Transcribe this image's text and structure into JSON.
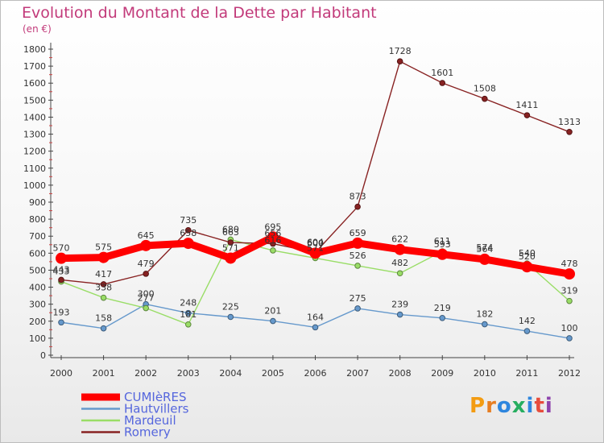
{
  "header": {
    "title": "Evolution du Montant de la Dette par Habitant",
    "subtitle": "(en €)"
  },
  "logo": {
    "text": "Proxiti"
  },
  "colors": {
    "title": "#c23a7a",
    "cumieres": "#ff0000",
    "hautvillers": "#6699cc",
    "mardeuil": "#99dd66",
    "romery": "#882222"
  },
  "chart_data": {
    "type": "line",
    "title": "Evolution du Montant de la Dette par Habitant",
    "subtitle": "(en €)",
    "xlabel": "",
    "ylabel": "",
    "x": [
      "2000",
      "2001",
      "2002",
      "2003",
      "2004",
      "2005",
      "2006",
      "2007",
      "2008",
      "2009",
      "2010",
      "2011",
      "2012"
    ],
    "ylim": [
      0,
      1800
    ],
    "yticks": [
      0,
      100,
      200,
      300,
      400,
      500,
      600,
      700,
      800,
      900,
      1000,
      1100,
      1200,
      1300,
      1400,
      1500,
      1600,
      1700,
      1800
    ],
    "grid": false,
    "legend_position": "bottom-left",
    "series": [
      {
        "name": "CUMIèRES",
        "color": "#ff0000",
        "values": [
          570,
          575,
          645,
          658,
          571,
          695,
          600,
          659,
          622,
          593,
          564,
          520,
          478
        ]
      },
      {
        "name": "Hautvillers",
        "color": "#6699cc",
        "values": [
          193,
          158,
          300,
          248,
          225,
          201,
          164,
          275,
          239,
          219,
          182,
          142,
          100
        ]
      },
      {
        "name": "Mardeuil",
        "color": "#99dd66",
        "values": [
          433,
          338,
          277,
          181,
          680,
          616,
          571,
          526,
          482,
          611,
          574,
          540,
          319
        ]
      },
      {
        "name": "Romery",
        "color": "#882222",
        "values": [
          443,
          417,
          479,
          735,
          663,
          656,
          604,
          873,
          1728,
          1601,
          1508,
          1411,
          1313
        ]
      }
    ],
    "data_labels": [
      [
        "570",
        "575",
        "645",
        "658",
        "571",
        "695",
        "600",
        "659",
        "622",
        "593",
        "564",
        "520",
        "478"
      ],
      [
        "193",
        "158",
        "300",
        "248",
        "225",
        "201",
        "164",
        "275",
        "239",
        "219",
        "182",
        "142",
        "100"
      ],
      [
        "433",
        "338",
        "277",
        "181",
        "680",
        "616",
        "571",
        "526",
        "482",
        "611",
        "574",
        "540",
        "319"
      ],
      [
        "443",
        "417",
        "479",
        "735",
        "663",
        "656",
        "604",
        "873",
        "1728",
        "1601",
        "1508",
        "1411",
        "1313"
      ]
    ]
  }
}
